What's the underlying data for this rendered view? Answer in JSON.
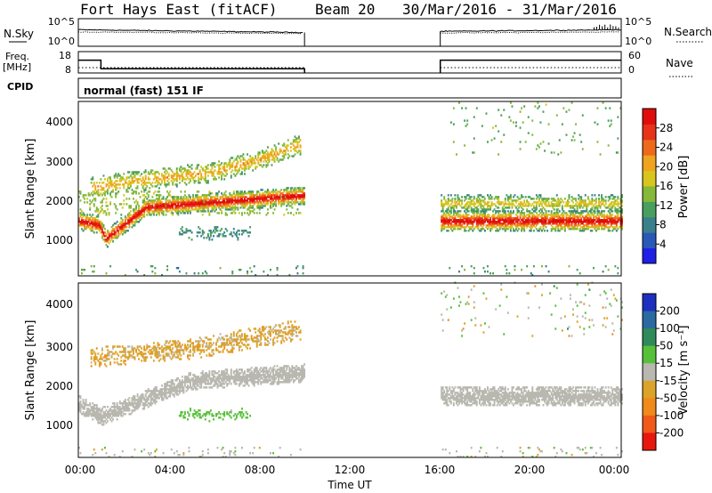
{
  "header": {
    "station": "Fort Hays East (fitACF)",
    "beam": "Beam 20",
    "dates": "30/Mar/2016 - 31/Mar/2016"
  },
  "summary_panels": {
    "nsky_label": "N.Sky",
    "nsearch_label": "N.Search",
    "freq_label_1": "Freq.",
    "freq_label_2": "[MHz]",
    "nave_label": "Nave",
    "cpid_label": "CPID",
    "cpid_text": "normal (fast) 151 IF",
    "noise_ticks_left": [
      "10^5",
      "10^0"
    ],
    "noise_ticks_right": [
      "10^5",
      "10^0"
    ],
    "freq_ticks": [
      "18",
      "8"
    ],
    "nave_ticks": [
      "60",
      "0"
    ]
  },
  "axes": {
    "time_label": "Time UT",
    "range_label": "Slant Range [km]",
    "time_ticks": [
      "00:00",
      "04:00",
      "08:00",
      "12:00",
      "16:00",
      "20:00",
      "00:00"
    ],
    "range_ticks": [
      "1000",
      "2000",
      "3000",
      "4000"
    ]
  },
  "colorbars": {
    "power": {
      "label": "Power [dB]",
      "ticks": [
        "4",
        "8",
        "12",
        "16",
        "20",
        "24",
        "28"
      ],
      "colors": [
        "#1f1fe6",
        "#2a58b8",
        "#3a7f8c",
        "#4a9f5e",
        "#86b83a",
        "#d8c51e",
        "#f0a31e",
        "#ee6a1a",
        "#e8321a",
        "#e00d0d"
      ]
    },
    "velocity": {
      "label": "Velocity [m s⁻¹]",
      "ticks": [
        "200",
        "100",
        "50",
        "15",
        "-15",
        "-50",
        "-100",
        "-200"
      ],
      "colors": [
        "#1d2fbf",
        "#2a6aa0",
        "#2f8a5a",
        "#57c03a",
        "#b8b8b0",
        "#dba32a",
        "#f08a1a",
        "#f0591a",
        "#e8180e"
      ]
    }
  },
  "chart_data": [
    {
      "type": "heatmap",
      "name": "power",
      "xlabel": "Time UT",
      "ylabel": "Slant Range [km]",
      "xlim": [
        0,
        24
      ],
      "ylim": [
        180,
        4600
      ],
      "colorbar_label": "Power [dB]",
      "clim": [
        0,
        30
      ],
      "data_gap_hours": [
        10,
        16
      ],
      "features": [
        {
          "kind": "ground_scatter",
          "t": [
            0,
            0.9,
            1.2,
            3,
            10
          ],
          "range_km": [
            1550,
            1450,
            1100,
            1900,
            2200
          ],
          "power_db": 28
        },
        {
          "kind": "ionospheric_scatter",
          "t": [
            0.5,
            3,
            6,
            8,
            9.8
          ],
          "range_km": [
            2400,
            2600,
            2800,
            3100,
            3500
          ],
          "power_db": 16
        },
        {
          "kind": "patch",
          "t": [
            4.4,
            7.6
          ],
          "range_km": [
            1000,
            1500
          ],
          "power_db": 9
        },
        {
          "kind": "ground_scatter",
          "t": [
            16,
            20,
            24
          ],
          "range_km": [
            1550,
            1550,
            1550
          ],
          "power_db": 28
        },
        {
          "kind": "upper_band",
          "t": [
            16,
            20,
            24
          ],
          "range_km": [
            2000,
            2000,
            2000
          ],
          "power_db": 14
        }
      ]
    },
    {
      "type": "heatmap",
      "name": "velocity",
      "xlabel": "Time UT",
      "ylabel": "Slant Range [km]",
      "xlim": [
        0,
        24
      ],
      "ylim": [
        180,
        4600
      ],
      "colorbar_label": "Velocity [m s⁻¹]",
      "clim": [
        -200,
        200
      ],
      "data_gap_hours": [
        10,
        16
      ],
      "features": [
        {
          "kind": "ground_scatter",
          "t": [
            0,
            1,
            5,
            10
          ],
          "range_km": [
            1500,
            1200,
            2100,
            2300
          ],
          "velocity": 0
        },
        {
          "kind": "ionospheric_scatter",
          "t": [
            0.5,
            5,
            9.8
          ],
          "range_km": [
            2700,
            2900,
            3400
          ],
          "velocity": -40
        },
        {
          "kind": "patch",
          "t": [
            4.4,
            7.6
          ],
          "range_km": [
            1000,
            1500
          ],
          "velocity": 40
        },
        {
          "kind": "ground_scatter",
          "t": [
            16,
            24
          ],
          "range_km": [
            1700,
            1700
          ],
          "velocity": 0
        }
      ]
    },
    {
      "type": "line",
      "name": "noise",
      "series": [
        {
          "name": "N.Sky",
          "x": [
            0,
            10,
            16,
            24
          ],
          "y": [
            3,
            2.5,
            2.7,
            3
          ]
        },
        {
          "name": "N.Search",
          "x": [
            0,
            10,
            16,
            24
          ],
          "y": [
            2.6,
            2.3,
            2.4,
            2.6
          ]
        }
      ],
      "ylim": [
        0,
        5
      ],
      "yscale": "log10"
    },
    {
      "type": "line",
      "name": "frequency_nave",
      "series": [
        {
          "name": "Freq.",
          "x": [
            0,
            1,
            1,
            10,
            16,
            24
          ],
          "y": [
            14,
            14,
            10,
            10,
            14,
            14
          ]
        },
        {
          "name": "Nave",
          "x": [
            0,
            10,
            16,
            24
          ],
          "y": [
            15,
            15,
            15,
            15
          ]
        }
      ],
      "ylim_freq": [
        8,
        18
      ],
      "ylim_nave": [
        0,
        60
      ]
    }
  ]
}
